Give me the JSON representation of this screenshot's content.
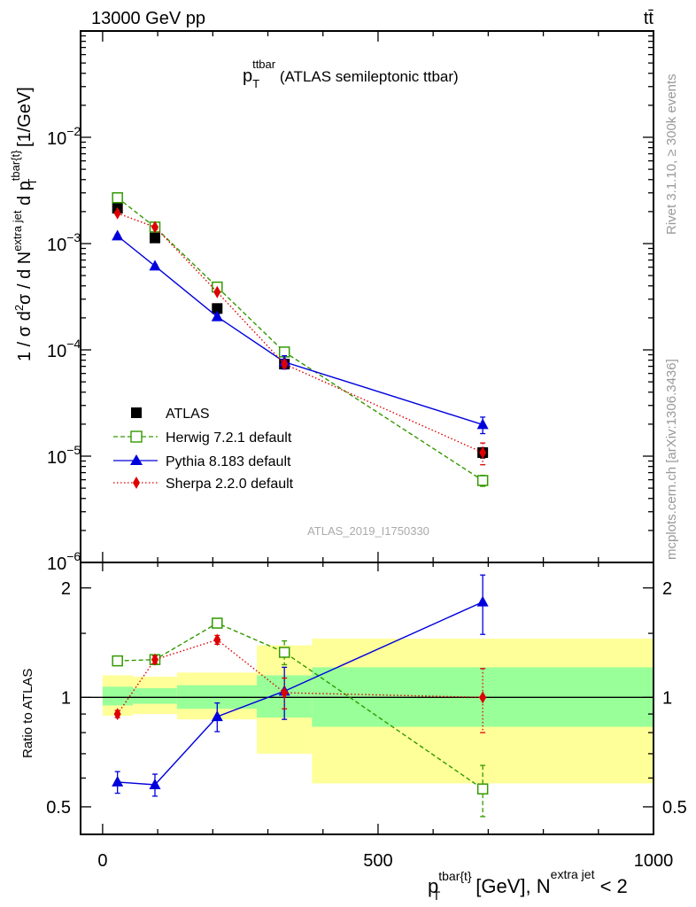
{
  "header": {
    "energy_label": "13000 GeV pp",
    "process_label": "tt̄"
  },
  "side_labels": {
    "rivet": "Rivet 3.1.10, ≥ 300k events",
    "mcplots": "mcplots.cern.ch [arXiv:1306.3436]"
  },
  "watermark": "ATLAS_2019_I1750330",
  "title": {
    "p": "p",
    "T": "T",
    "sup": "ttbar",
    "rest": " (ATLAS semileptonic ttbar)"
  },
  "ylabel_main": "1 / σ d²σ / d N^{extra jet} d p_T^{tbar{t}} [1/GeV]",
  "ylabel_main_parts": {
    "a": "1 / σ d",
    "b": "2",
    "c": "σ / d N",
    "d": "extra jet",
    "e": " d p",
    "f": "tbar{t}",
    "g": "T",
    "h": " [1/GeV]"
  },
  "ylabel_ratio": "Ratio to ATLAS",
  "xlabel_parts": {
    "a": "p",
    "b": "tbar{t}",
    "c": "T",
    "d": " [GeV], N",
    "e": "extra jet",
    "f": " < 2"
  },
  "legend": [
    {
      "label": "ATLAS"
    },
    {
      "label": "Herwig 7.2.1 default"
    },
    {
      "label": "Pythia 8.183 default"
    },
    {
      "label": "Sherpa 2.2.0 default"
    }
  ],
  "chart_data": [
    {
      "type": "scatter",
      "panel": "main",
      "title": "p_T^{ttbar} (ATLAS semileptonic ttbar)",
      "xlabel": "p_T^{tbar{t}} [GeV], N^{extra jet} < 2",
      "ylabel": "1 / σ d²σ / d N^{extra jet} d p_T^{tbar{t}} [1/GeV]",
      "xlim": [
        -40,
        1000
      ],
      "ylim": [
        1e-06,
        0.1
      ],
      "yscale": "log",
      "x_ticks": [
        0,
        500,
        1000
      ],
      "y_ticks": [
        {
          "v": 1e-06,
          "m": "10",
          "e": "−6"
        },
        {
          "v": 1e-05,
          "m": "10",
          "e": "−5"
        },
        {
          "v": 0.0001,
          "m": "10",
          "e": "−4"
        },
        {
          "v": 0.001,
          "m": "10",
          "e": "−3"
        },
        {
          "v": 0.01,
          "m": "10",
          "e": "−2"
        }
      ],
      "series": [
        {
          "name": "ATLAS",
          "color": "#000000",
          "marker": "square-filled",
          "line": "none",
          "x": [
            27,
            95,
            208,
            330,
            690
          ],
          "y": [
            0.00215,
            0.00113,
            0.000245,
            7.35e-05,
            1.08e-05
          ],
          "err": [
            0.0001,
            5e-05,
            1.5e-05,
            6e-06,
            1.2e-06
          ]
        },
        {
          "name": "Herwig 7.2.1 default",
          "color": "#339900",
          "marker": "square-open",
          "line": "dashed",
          "x": [
            27,
            95,
            208,
            330,
            690
          ],
          "y": [
            0.0027,
            0.00143,
            0.00039,
            9.55e-05,
            5.9e-06
          ],
          "err": [
            8e-05,
            4e-05,
            1e-05,
            4e-06,
            7e-07
          ]
        },
        {
          "name": "Pythia 8.183 default",
          "color": "#0000dd",
          "marker": "triangle-filled",
          "line": "solid",
          "x": [
            27,
            95,
            208,
            330,
            690
          ],
          "y": [
            0.00118,
            0.000615,
            0.000205,
            7.7e-05,
            1.98e-05
          ],
          "err": [
            4e-05,
            2e-05,
            1e-05,
            1.1e-05,
            3.5e-06
          ]
        },
        {
          "name": "Sherpa 2.2.0 default",
          "color": "#dd0000",
          "marker": "diamond-filled",
          "line": "dotted",
          "x": [
            27,
            95,
            208,
            330,
            690
          ],
          "y": [
            0.00193,
            0.00143,
            0.00035,
            7.35e-05,
            1.08e-05
          ],
          "err": [
            5e-05,
            4e-05,
            1e-05,
            5e-06,
            2.5e-06
          ]
        }
      ]
    },
    {
      "type": "scatter",
      "panel": "ratio",
      "ylabel": "Ratio to ATLAS",
      "xlim": [
        -40,
        1000
      ],
      "ylim": [
        0.42,
        2.35
      ],
      "yscale": "log",
      "y_ticks": [
        0.5,
        1,
        2
      ],
      "y_tick_labels": [
        "0.5",
        "1",
        "2"
      ],
      "bands": {
        "bins": [
          [
            0,
            55
          ],
          [
            55,
            135
          ],
          [
            135,
            280
          ],
          [
            280,
            380
          ],
          [
            380,
            1000
          ]
        ],
        "inner": [
          [
            0.95,
            1.07
          ],
          [
            0.96,
            1.06
          ],
          [
            0.93,
            1.08
          ],
          [
            0.88,
            1.15
          ],
          [
            0.83,
            1.21
          ]
        ],
        "outer": [
          [
            0.89,
            1.15
          ],
          [
            0.9,
            1.14
          ],
          [
            0.87,
            1.17
          ],
          [
            0.7,
            1.39
          ],
          [
            0.58,
            1.45
          ]
        ],
        "inner_color": "#99ff99",
        "outer_color": "#ffff99"
      },
      "series": [
        {
          "name": "Herwig 7.2.1 default",
          "color": "#339900",
          "marker": "square-open",
          "line": "dashed",
          "x": [
            27,
            95,
            208,
            330,
            690
          ],
          "y": [
            1.26,
            1.27,
            1.6,
            1.33,
            0.56
          ],
          "err": [
            0.03,
            0.03,
            0.04,
            0.1,
            0.09
          ]
        },
        {
          "name": "Pythia 8.183 default",
          "color": "#0000dd",
          "marker": "triangle-filled",
          "line": "solid",
          "x": [
            27,
            95,
            208,
            330,
            690
          ],
          "y": [
            0.585,
            0.575,
            0.885,
            1.04,
            1.83
          ],
          "err": [
            0.04,
            0.04,
            0.08,
            0.17,
            0.34
          ]
        },
        {
          "name": "Sherpa 2.2.0 default",
          "color": "#dd0000",
          "marker": "diamond-filled",
          "line": "dotted",
          "x": [
            27,
            95,
            208,
            330,
            690
          ],
          "y": [
            0.9,
            1.27,
            1.44,
            1.03,
            1.0
          ],
          "err": [
            0.02,
            0.03,
            0.04,
            0.1,
            0.2
          ]
        }
      ]
    }
  ]
}
